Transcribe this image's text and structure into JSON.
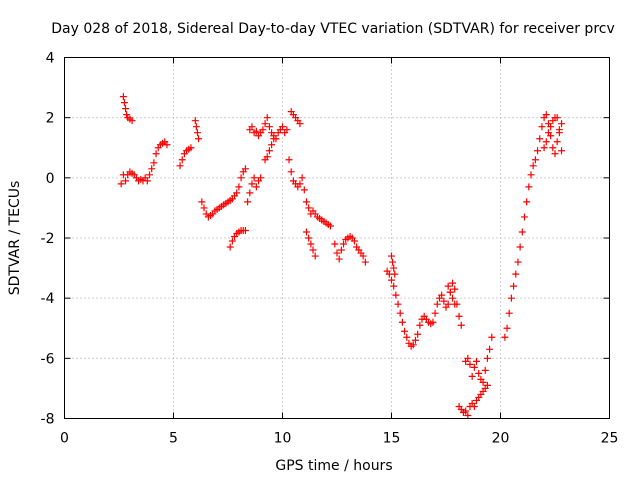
{
  "chart_data": {
    "type": "scatter",
    "title": "Day 028 of 2018, Sidereal Day-to-day VTEC variation (SDTVAR) for receiver prcv",
    "xlabel": "GPS time / hours",
    "ylabel": "SDTVAR / TECUs",
    "xlim": [
      0,
      25
    ],
    "ylim": [
      -8,
      4
    ],
    "xticks": [
      "0",
      "5",
      "10",
      "15",
      "20",
      "25"
    ],
    "yticks": [
      "-8",
      "-6",
      "-4",
      "-2",
      "0",
      "2",
      "4"
    ],
    "grid": true,
    "marker": "+",
    "color": "#ff0000",
    "series": [
      {
        "name": "seg1",
        "x": [
          2.7,
          2.75,
          2.8,
          2.85,
          2.9,
          3.0,
          3.1
        ],
        "y": [
          2.7,
          2.5,
          2.3,
          2.1,
          2.0,
          1.95,
          1.9
        ]
      },
      {
        "name": "seg2",
        "x": [
          2.6,
          2.7,
          2.8,
          2.9,
          3.0,
          3.1,
          3.2,
          3.3,
          3.4,
          3.5,
          3.6,
          3.7,
          3.8,
          3.9,
          4.0,
          4.1,
          4.2,
          4.3,
          4.4,
          4.5,
          4.6,
          4.7
        ],
        "y": [
          -0.2,
          0.1,
          -0.1,
          0.1,
          0.2,
          0.15,
          0.1,
          0.0,
          -0.1,
          -0.05,
          -0.1,
          0.0,
          -0.1,
          0.1,
          0.3,
          0.5,
          0.8,
          1.0,
          1.1,
          1.15,
          1.2,
          1.1
        ]
      },
      {
        "name": "seg3",
        "x": [
          5.3,
          5.4,
          5.5,
          5.6,
          5.7,
          5.8
        ],
        "y": [
          0.4,
          0.6,
          0.8,
          0.9,
          0.95,
          1.0
        ]
      },
      {
        "name": "seg4",
        "x": [
          6.0,
          6.05,
          6.1,
          6.15
        ],
        "y": [
          1.9,
          1.7,
          1.5,
          1.3
        ]
      },
      {
        "name": "seg5",
        "x": [
          6.3,
          6.4,
          6.5,
          6.6,
          6.7,
          6.8,
          6.9,
          7.0,
          7.1,
          7.2,
          7.3,
          7.4,
          7.5,
          7.6,
          7.7,
          7.8,
          7.9,
          8.0,
          8.1,
          8.2,
          8.3
        ],
        "y": [
          -0.8,
          -1.0,
          -1.2,
          -1.3,
          -1.25,
          -1.2,
          -1.1,
          -1.05,
          -1.0,
          -0.95,
          -0.9,
          -0.85,
          -0.8,
          -0.75,
          -0.7,
          -0.6,
          -0.5,
          -0.3,
          0.0,
          0.2,
          0.3
        ]
      },
      {
        "name": "seg6",
        "x": [
          7.6,
          7.7,
          7.8,
          7.9,
          8.0,
          8.1,
          8.2,
          8.3
        ],
        "y": [
          -2.3,
          -2.1,
          -1.95,
          -1.85,
          -1.8,
          -1.75,
          -1.75,
          -1.75
        ]
      },
      {
        "name": "seg7",
        "x": [
          8.4,
          8.5,
          8.6,
          8.7,
          8.8,
          8.9,
          9.0
        ],
        "y": [
          -0.8,
          -0.5,
          -0.2,
          0.0,
          -0.3,
          -0.1,
          0.0
        ]
      },
      {
        "name": "seg8",
        "x": [
          8.5,
          8.6,
          8.7,
          8.8,
          8.9,
          9.0,
          9.1,
          9.2,
          9.3,
          9.4,
          9.5,
          9.6,
          9.7,
          9.8,
          9.9,
          10.0,
          10.1,
          10.2
        ],
        "y": [
          1.6,
          1.7,
          1.5,
          1.55,
          1.4,
          1.5,
          1.6,
          1.8,
          2.0,
          1.7,
          1.5,
          1.4,
          1.3,
          1.5,
          1.6,
          1.7,
          1.5,
          1.6
        ]
      },
      {
        "name": "seg9",
        "x": [
          9.2,
          9.3,
          9.4,
          9.5,
          9.6
        ],
        "y": [
          0.6,
          0.7,
          0.9,
          1.1,
          1.3
        ]
      },
      {
        "name": "seg10",
        "x": [
          10.4,
          10.5,
          10.6,
          10.7,
          10.8
        ],
        "y": [
          2.2,
          2.1,
          2.0,
          1.9,
          1.8
        ]
      },
      {
        "name": "seg11",
        "x": [
          10.3,
          10.4,
          10.5,
          10.6,
          10.7,
          10.8,
          10.9,
          11.0,
          11.1,
          11.2,
          11.3,
          11.4,
          11.5,
          11.6,
          11.7,
          11.8,
          11.9,
          12.0,
          12.1,
          12.2
        ],
        "y": [
          0.6,
          0.2,
          -0.1,
          -0.2,
          -0.3,
          -0.2,
          0.0,
          -0.4,
          -0.8,
          -1.0,
          -1.2,
          -1.1,
          -1.2,
          -1.3,
          -1.35,
          -1.4,
          -1.45,
          -1.5,
          -1.55,
          -1.6
        ]
      },
      {
        "name": "seg12",
        "x": [
          11.1,
          11.2,
          11.3,
          11.4,
          11.5
        ],
        "y": [
          -1.8,
          -2.0,
          -2.2,
          -2.4,
          -2.6
        ]
      },
      {
        "name": "seg13",
        "x": [
          12.4,
          12.5,
          12.6,
          12.7,
          12.8,
          12.9,
          13.0,
          13.1,
          13.2,
          13.3,
          13.4,
          13.5,
          13.6,
          13.7,
          13.8
        ],
        "y": [
          -2.2,
          -2.5,
          -2.7,
          -2.4,
          -2.2,
          -2.05,
          -2.0,
          -1.95,
          -2.0,
          -2.1,
          -2.3,
          -2.4,
          -2.5,
          -2.6,
          -2.8
        ]
      },
      {
        "name": "seg14",
        "x": [
          14.8,
          14.9,
          15.0,
          15.1,
          15.2,
          15.3,
          15.4,
          15.5,
          15.6,
          15.7,
          15.8,
          15.9,
          16.0,
          16.1,
          16.2,
          16.3,
          16.4,
          16.5,
          16.6,
          16.7,
          16.8,
          16.9,
          17.0,
          17.1,
          17.2,
          17.3,
          17.4,
          17.5,
          17.6,
          17.7,
          17.8,
          17.9,
          18.0,
          18.1,
          18.2
        ],
        "y": [
          -3.1,
          -3.2,
          -3.4,
          -3.6,
          -3.9,
          -4.2,
          -4.5,
          -4.8,
          -5.1,
          -5.3,
          -5.5,
          -5.6,
          -5.55,
          -5.4,
          -5.2,
          -4.9,
          -4.7,
          -4.6,
          -4.7,
          -4.8,
          -4.85,
          -4.8,
          -4.5,
          -4.2,
          -4.0,
          -3.9,
          -4.1,
          -4.3,
          -4.2,
          -3.8,
          -3.5,
          -3.7,
          -4.2,
          -4.6,
          -4.9
        ]
      },
      {
        "name": "seg15",
        "x": [
          15.0,
          15.05,
          15.1,
          15.15
        ],
        "y": [
          -2.6,
          -2.8,
          -3.0,
          -3.2
        ]
      },
      {
        "name": "seg16",
        "x": [
          17.6,
          17.7,
          17.8,
          17.9
        ],
        "y": [
          -3.6,
          -3.8,
          -4.0,
          -4.2
        ]
      },
      {
        "name": "seg17",
        "x": [
          18.1,
          18.2,
          18.3,
          18.4,
          18.5,
          18.6,
          18.7,
          18.8,
          18.9,
          19.0,
          19.1,
          19.2,
          19.3,
          19.4
        ],
        "y": [
          -7.6,
          -7.7,
          -7.8,
          -7.75,
          -7.9,
          -7.6,
          -7.5,
          -7.6,
          -7.4,
          -7.3,
          -7.2,
          -7.1,
          -7.0,
          -6.9
        ]
      },
      {
        "name": "seg18",
        "x": [
          18.4,
          18.5,
          18.6,
          18.7,
          18.8,
          18.9,
          19.0,
          19.1,
          19.2,
          19.3,
          19.4,
          19.5,
          19.6
        ],
        "y": [
          -6.1,
          -6.0,
          -6.2,
          -6.6,
          -6.3,
          -6.1,
          -6.5,
          -6.7,
          -6.8,
          -6.4,
          -6.0,
          -5.7,
          -5.3
        ]
      },
      {
        "name": "seg19",
        "x": [
          20.2,
          20.3,
          20.4,
          20.5,
          20.6,
          20.7,
          20.8,
          20.9,
          21.0,
          21.1,
          21.2,
          21.3,
          21.4,
          21.5,
          21.6,
          21.7,
          21.8,
          21.9,
          22.0,
          22.1,
          22.2,
          22.3,
          22.4,
          22.5,
          22.6,
          22.7,
          22.8
        ],
        "y": [
          -5.3,
          -5.0,
          -4.5,
          -4.0,
          -3.6,
          -3.2,
          -2.8,
          -2.3,
          -1.8,
          -1.3,
          -0.8,
          -0.3,
          0.1,
          0.4,
          0.6,
          0.9,
          1.3,
          1.7,
          2.0,
          2.1,
          1.8,
          1.4,
          1.0,
          0.8,
          1.2,
          1.5,
          0.9
        ]
      },
      {
        "name": "seg20",
        "x": [
          22.0,
          22.1,
          22.2,
          22.3,
          22.4,
          22.5,
          22.6,
          22.7,
          22.8
        ],
        "y": [
          1.0,
          1.2,
          1.5,
          1.7,
          1.9,
          2.0,
          2.0,
          1.6,
          1.8
        ]
      }
    ]
  }
}
